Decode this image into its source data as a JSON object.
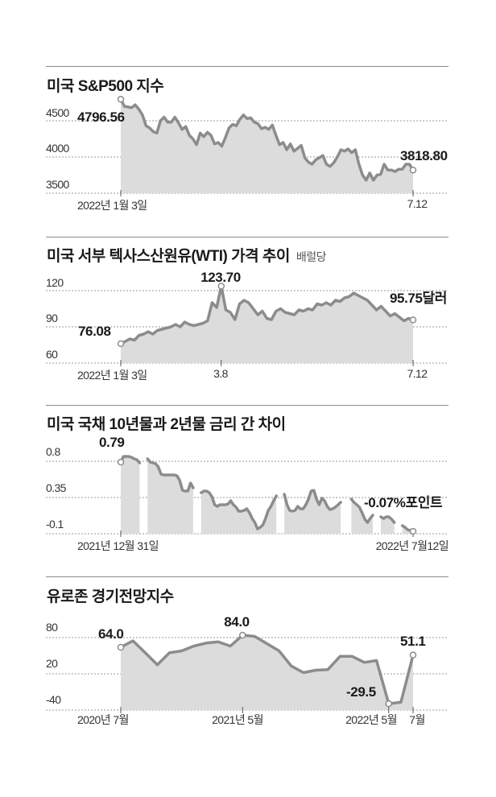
{
  "colors": {
    "line": "#8c8c8c",
    "area": "#dcdcdc",
    "grid": "#9a9a9a",
    "text": "#1a1a1a"
  },
  "chart_data": [
    {
      "type": "area",
      "title": "미국 S&P500 지수",
      "ylim": [
        3500,
        4800
      ],
      "gridlines": [
        4500,
        4000,
        3500
      ],
      "ytick_labels": [
        "4500",
        "4000",
        "3500"
      ],
      "xtick_labels": [
        "2022년 1월 3일",
        "7.12"
      ],
      "annotations": {
        "start": "4796.56",
        "end": "3818.80"
      },
      "values": [
        4796.56,
        4700,
        4690,
        4680,
        4720,
        4660,
        4580,
        4430,
        4400,
        4350,
        4330,
        4500,
        4550,
        4480,
        4480,
        4550,
        4470,
        4380,
        4420,
        4300,
        4250,
        4170,
        4330,
        4280,
        4340,
        4300,
        4180,
        4200,
        4150,
        4270,
        4400,
        4450,
        4430,
        4520,
        4580,
        4530,
        4540,
        4480,
        4460,
        4390,
        4410,
        4380,
        4440,
        4300,
        4170,
        4200,
        4100,
        4180,
        4080,
        4120,
        4160,
        3990,
        3930,
        3900,
        3960,
        3990,
        4020,
        3900,
        3870,
        3920,
        4000,
        4100,
        4080,
        4110,
        4060,
        4100,
        3900,
        3750,
        3680,
        3780,
        3680,
        3750,
        3760,
        3900,
        3820,
        3820,
        3800,
        3830,
        3830,
        3900,
        3900,
        3818.8
      ]
    },
    {
      "type": "area",
      "title": "미국 서부 텍사스산원유(WTI) 가격 추이",
      "unit": "배럴당",
      "ylim": [
        60,
        125
      ],
      "gridlines": [
        120,
        90,
        60
      ],
      "ytick_labels": [
        "120",
        "90",
        "60"
      ],
      "xtick_labels": [
        "2022년 1월 3일",
        "3.8",
        "7.12"
      ],
      "annotations": {
        "start": "76.08",
        "peak": "123.70",
        "end": "95.75달러"
      },
      "peak_index": 22,
      "values": [
        76.08,
        78,
        80,
        79,
        83,
        84,
        86,
        84,
        87,
        88,
        89,
        90,
        92,
        90,
        94,
        92,
        91,
        92,
        93,
        95,
        110,
        106,
        123.7,
        104,
        102,
        96,
        109,
        112,
        110,
        105,
        100,
        103,
        97,
        96,
        103,
        105,
        102,
        101,
        100,
        104,
        103,
        105,
        104,
        109,
        108,
        110,
        108,
        112,
        111,
        114,
        115,
        118,
        116,
        114,
        112,
        108,
        104,
        107,
        103,
        99,
        101,
        98,
        95,
        97,
        95.75
      ]
    },
    {
      "type": "area",
      "title": "미국 국채 10년물과 2년물 금리 간 차이",
      "ylim": [
        -0.1,
        0.9
      ],
      "gridlines": [
        0.8,
        0.35,
        -0.1
      ],
      "ytick_labels": [
        "0.8",
        "0.35",
        "-0.1"
      ],
      "xtick_labels": [
        "2021년 12월 31일",
        "2022년 7월12일"
      ],
      "annotations": {
        "start": "0.79",
        "end": "-0.07%포인트"
      },
      "values": [
        0.79,
        0.86,
        0.86,
        0.86,
        0.85,
        0.83,
        0.82,
        0.78,
        null,
        null,
        0.83,
        0.79,
        0.78,
        0.77,
        0.73,
        0.64,
        0.63,
        0.63,
        0.63,
        0.63,
        0.63,
        0.62,
        0.56,
        0.44,
        0.43,
        0.43,
        0.53,
        0.47,
        null,
        null,
        0.41,
        0.43,
        0.43,
        0.41,
        0.36,
        0.26,
        0.24,
        0.26,
        0.26,
        0.26,
        0.27,
        0.31,
        0.26,
        0.23,
        0.18,
        0.18,
        0.19,
        0.21,
        0.16,
        0.09,
        0.04,
        -0.04,
        -0.02,
        0.01,
        0.09,
        0.19,
        0.24,
        0.31,
        0.37,
        null,
        null,
        0.39,
        0.26,
        0.19,
        0.18,
        0.19,
        0.24,
        0.21,
        0.21,
        0.26,
        0.33,
        0.43,
        0.44,
        0.33,
        0.26,
        0.34,
        0.31,
        0.24,
        0.2,
        0.21,
        0.23,
        0.26,
        0.29,
        null,
        null,
        null,
        0.33,
        0.29,
        0.26,
        0.23,
        0.16,
        0.08,
        0.04,
        0.09,
        0.13,
        null,
        null,
        0.11,
        0.09,
        0.11,
        0.11,
        0.08,
        0.04,
        null,
        null,
        0.0,
        -0.02,
        -0.05,
        -0.06,
        -0.07
      ]
    },
    {
      "type": "area",
      "title": "유로존 경기전망지수",
      "ylim": [
        -40,
        90
      ],
      "gridlines": [
        80,
        20,
        -40
      ],
      "ytick_labels": [
        "80",
        "20",
        "-40"
      ],
      "xtick_labels": [
        "2020년 7월",
        "2021년 5월",
        "2022년 5월",
        "7월"
      ],
      "annotations": {
        "start": "64.0",
        "peak": "84.0",
        "low": "-29.5",
        "end": "51.1"
      },
      "peak_index": 10,
      "low_index": 22,
      "values": [
        64,
        74.7,
        55,
        35,
        55,
        58,
        66,
        71,
        73,
        66,
        84,
        82,
        70,
        58,
        33,
        22,
        26,
        27,
        49,
        49,
        39,
        42,
        -29.5,
        -27,
        51.1
      ]
    }
  ]
}
